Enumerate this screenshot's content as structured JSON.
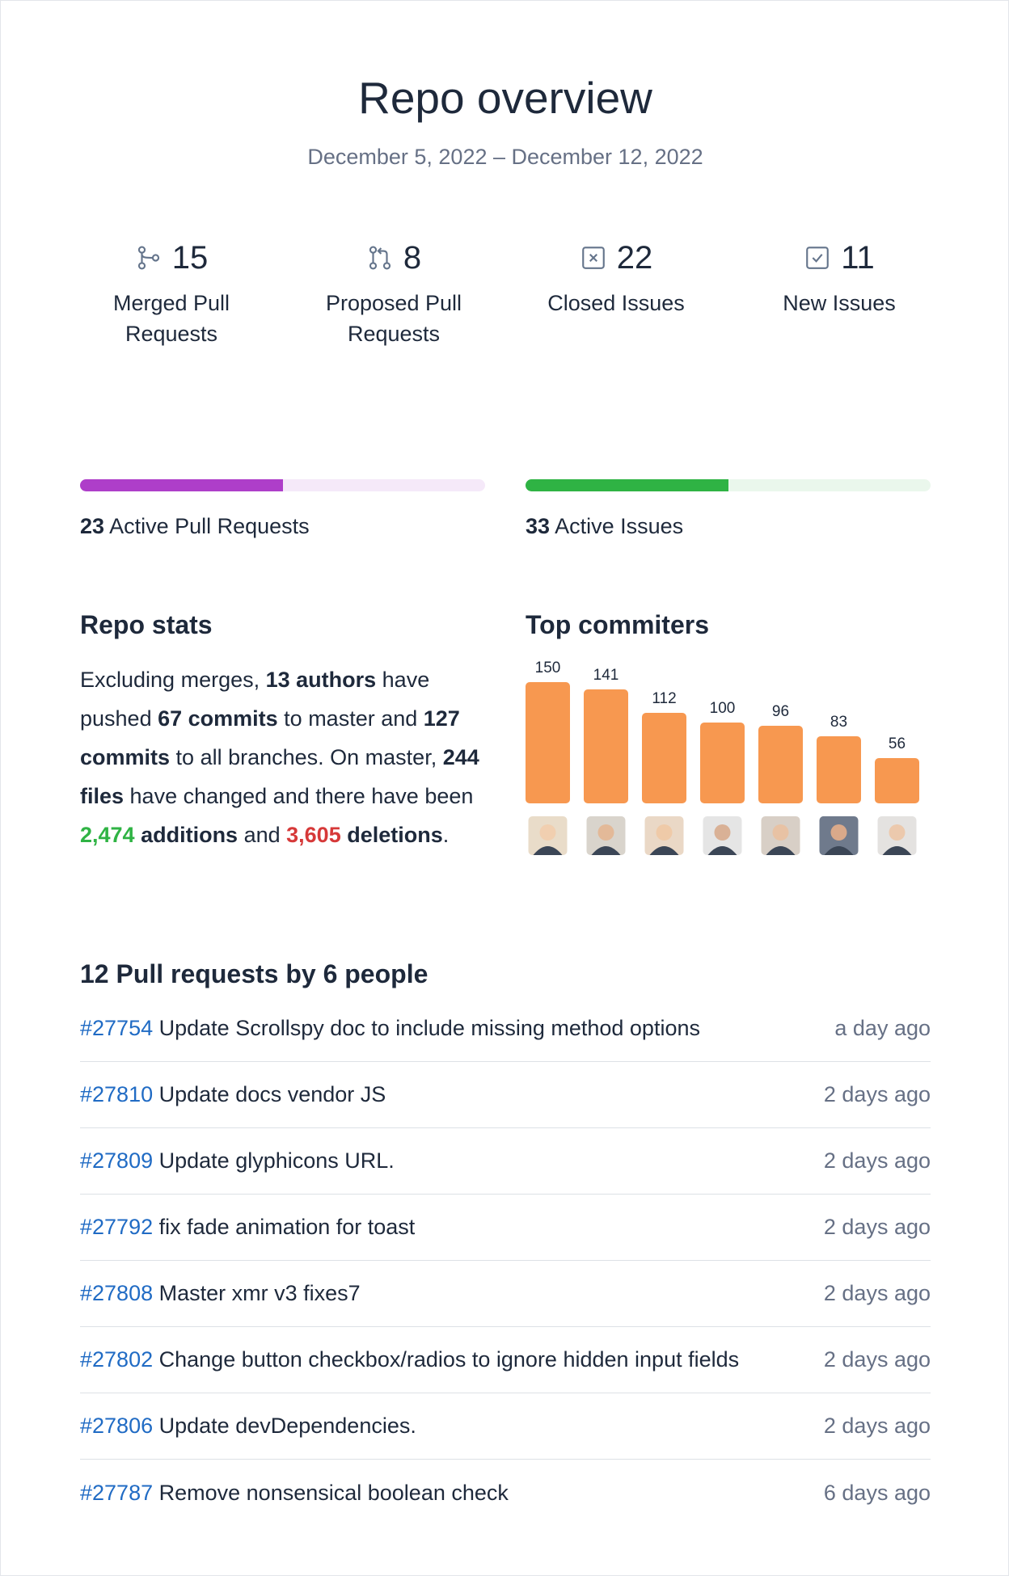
{
  "header": {
    "title": "Repo overview",
    "date_range": "December 5, 2022 – December 12, 2022"
  },
  "stats": [
    {
      "value": 15,
      "label": "Merged Pull Requests"
    },
    {
      "value": 8,
      "label": "Proposed Pull Requests"
    },
    {
      "value": 22,
      "label": "Closed Issues"
    },
    {
      "value": 11,
      "label": "New Issues"
    }
  ],
  "progress": [
    {
      "count": 23,
      "label": "Active Pull Requests",
      "percent": 50,
      "color": "#ae3ec9",
      "track": "#f5e9f9"
    },
    {
      "count": 33,
      "label": "Active Issues",
      "percent": 50,
      "color": "#2fb344",
      "track": "#eaf7ec"
    }
  ],
  "repo_stats": {
    "title": "Repo stats",
    "segments": [
      {
        "text": "Excluding merges, ",
        "style": "normal"
      },
      {
        "text": "13 authors",
        "style": "bold"
      },
      {
        "text": " have pushed ",
        "style": "normal"
      },
      {
        "text": "67 commits",
        "style": "bold"
      },
      {
        "text": " to master and ",
        "style": "normal"
      },
      {
        "text": "127 commits",
        "style": "bold"
      },
      {
        "text": " to all branches. On master, ",
        "style": "normal"
      },
      {
        "text": "244 files",
        "style": "bold"
      },
      {
        "text": " have changed and there have been ",
        "style": "normal"
      },
      {
        "text": "2,474",
        "style": "green"
      },
      {
        "text": " additions",
        "style": "bold"
      },
      {
        "text": " and ",
        "style": "normal"
      },
      {
        "text": "3,605",
        "style": "red"
      },
      {
        "text": " deletions",
        "style": "bold"
      },
      {
        "text": ".",
        "style": "normal"
      }
    ]
  },
  "chart_data": {
    "type": "bar",
    "title": "Top commiters",
    "categories": [
      null,
      null,
      null,
      null,
      null,
      null,
      null
    ],
    "values": [
      150,
      141,
      112,
      100,
      96,
      83,
      56
    ],
    "color": "#f79850"
  },
  "pull_requests": {
    "title": "12 Pull requests by 6 people",
    "rows": [
      {
        "number": "#27754",
        "title": "Update Scrollspy doc to include missing method options",
        "time": "a day ago"
      },
      {
        "number": "#27810",
        "title": "Update docs vendor JS",
        "time": "2 days ago"
      },
      {
        "number": "#27809",
        "title": "Update glyphicons URL.",
        "time": "2 days ago"
      },
      {
        "number": "#27792",
        "title": "fix fade animation for toast",
        "time": "2 days ago"
      },
      {
        "number": "#27808",
        "title": "Master xmr v3 fixes7",
        "time": "2 days ago"
      },
      {
        "number": "#27802",
        "title": "Change button checkbox/radios to ignore hidden input fields",
        "time": "2 days ago"
      },
      {
        "number": "#27806",
        "title": "Update devDependencies.",
        "time": "2 days ago"
      },
      {
        "number": "#27787",
        "title": "Remove nonsensical boolean check",
        "time": "6 days ago"
      }
    ]
  }
}
